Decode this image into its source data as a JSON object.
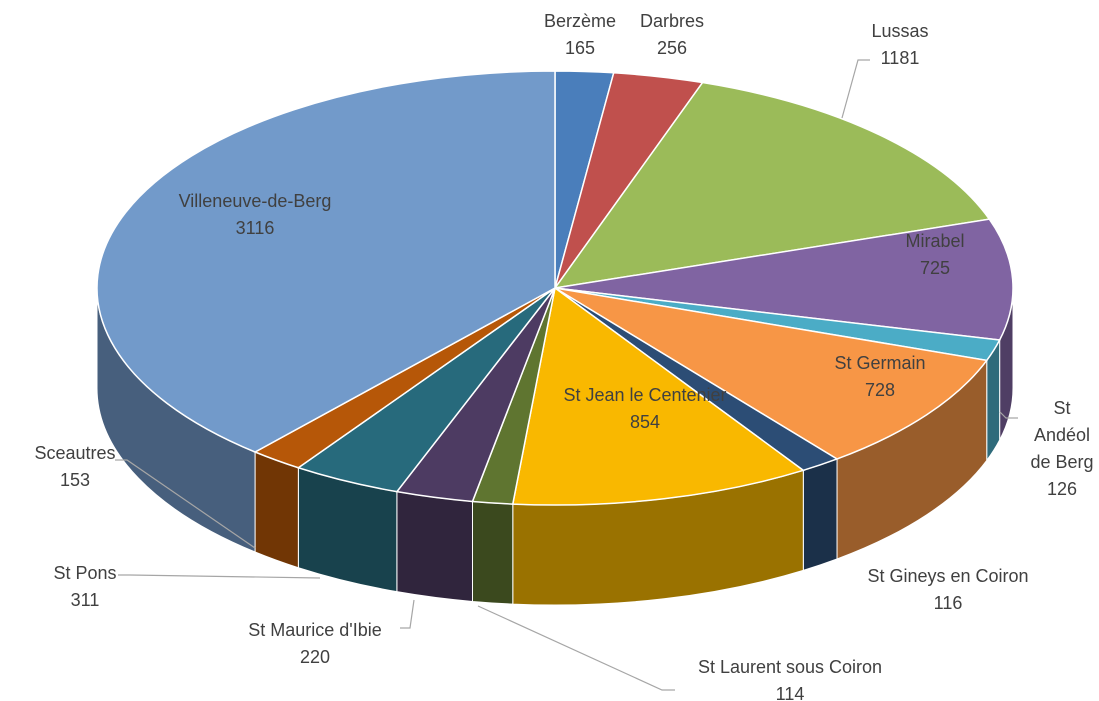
{
  "chart_data": {
    "type": "pie",
    "categories": [
      "Berzème",
      "Darbres",
      "Lussas",
      "Mirabel",
      "St Andéol de Berg",
      "St Germain",
      "St Gineys en Coiron",
      "St Jean le Centenier",
      "St Laurent sous Coiron",
      "St Maurice d'Ibie",
      "St Pons",
      "Sceautres",
      "Villeneuve-de-Berg"
    ],
    "values": [
      165,
      256,
      1181,
      725,
      126,
      728,
      116,
      854,
      114,
      220,
      311,
      153,
      3116
    ],
    "colors": [
      "#4a7ebb",
      "#c0504d",
      "#9bbb59",
      "#8064a2",
      "#4bacc6",
      "#f79646",
      "#2c4d75",
      "#f9b800",
      "#5f7530",
      "#4d3b62",
      "#276a7c",
      "#b65708",
      "#729aca"
    ]
  }
}
